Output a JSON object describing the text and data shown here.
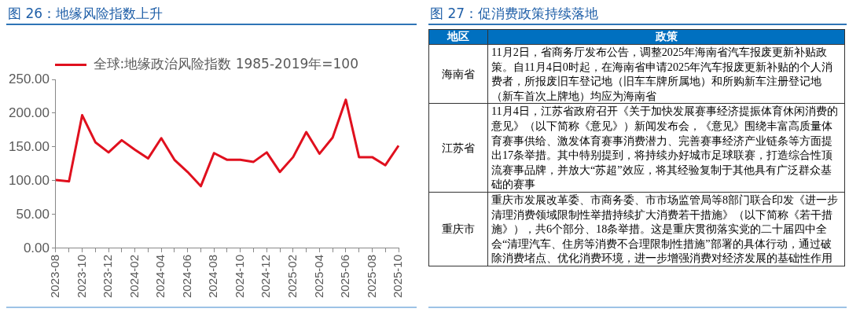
{
  "chart_data": [
    {
      "type": "line",
      "title": "图 26：地缘风险指数上升",
      "categories": [
        "2023-08",
        null,
        "2023-10",
        null,
        "2023-12",
        null,
        "2024-02",
        null,
        "2024-04",
        null,
        "2024-06",
        null,
        "2024-08",
        null,
        "2024-10",
        null,
        "2024-12",
        null,
        "2025-02",
        null,
        "2025-04",
        null,
        "2025-06",
        null,
        "2025-08",
        null,
        "2025-10"
      ],
      "series": [
        {
          "name": "全球:地缘政治风险指数 1985-2019年=100",
          "color": "#e0101e",
          "values": [
            101,
            99,
            197,
            157,
            142,
            160,
            146,
            133,
            163,
            131,
            113,
            92,
            141,
            131,
            131,
            128,
            142,
            113,
            135,
            172,
            140,
            164,
            220,
            135,
            135,
            123,
            152
          ]
        }
      ],
      "ylim": [
        0,
        250
      ],
      "yticks": [
        {
          "value": 0,
          "label": "0.00"
        },
        {
          "value": 50,
          "label": "50.00"
        },
        {
          "value": 100,
          "label": "100.00"
        },
        {
          "value": 150,
          "label": "150.00"
        },
        {
          "value": 200,
          "label": "200.00"
        },
        {
          "value": 250,
          "label": "250.00"
        }
      ],
      "grid": false,
      "legend": "top",
      "marker": "none"
    },
    {
      "type": "other",
      "title": "图 27：促消费政策持续落地",
      "annotations": [
        "地区",
        "政策",
        "海南省",
        "11月2日，省商务厅发布公告，调整2025年海南省汽车报废更新补贴政策。自11月4日0时起，在海南省申请2025年汽车报废更新补贴的个人消费者，所报废旧车登记地（旧车车牌所属地）和所购新车注册登记地（新车首次上牌地）均应为海南省",
        "江苏省",
        "11月4日，江苏省政府召开《关于加快发展赛事经济提振体育休闲消费的意见》（以下简称《意见》）新闻发布会，《意见》围绕丰富高质量体育赛事供给、激发体育赛事消费潜力、完善赛事经济产业链条等方面提出17条举措。其中特别提到，将持续办好城市足球联赛，打造综合性顶流赛事品牌，并放大“苏超”效应，将其经验复制于其他具有广泛群众基础的赛事",
        "重庆市",
        "重庆市发展改革委、市商务委、市市场监管局等8部门联合印发《进一步清理消费领域限制性举措持续扩大消费若干措施》（以下简称《若干措施》），共6个部分、18条举措。这是重庆贯彻落实党的二十届四中全会“清理汽车、住房等消费不合理限制性措施”部署的具体行动，通过破除消费堵点、优化消费环境，进一步增强消费对经济发展的基础性作用"
      ]
    }
  ]
}
